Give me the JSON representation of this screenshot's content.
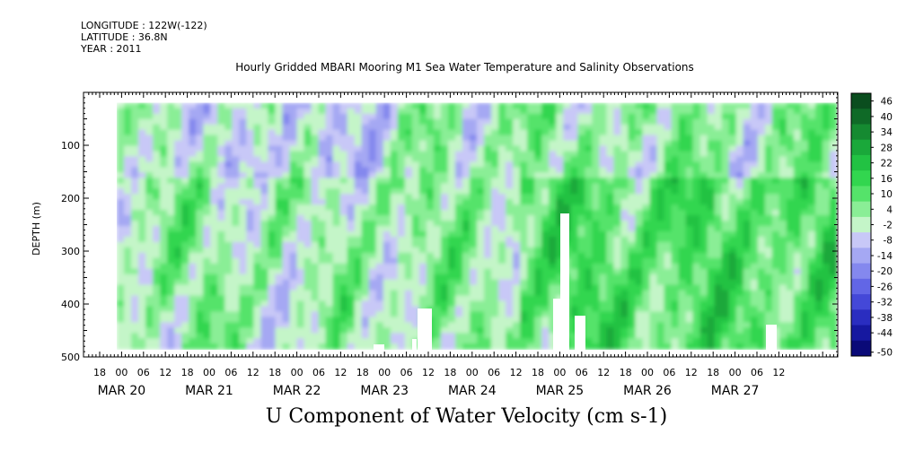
{
  "header": {
    "longitude": "LONGITUDE : 122W(-122)",
    "latitude": "LATITUDE : 36.8N",
    "year": "YEAR : 2011"
  },
  "chart_data": {
    "type": "heatmap",
    "title": "Hourly Gridded MBARI Mooring M1 Sea Water Temperature and Salinity Observations",
    "xlabel": "U Component of Water Velocity (cm s-1)",
    "ylabel": "DEPTH (m)",
    "ylim": [
      500,
      0
    ],
    "yticks": [
      100,
      200,
      300,
      400,
      500
    ],
    "data_depth_range": [
      20,
      485
    ],
    "x_hour_ticks": [
      "18",
      "00",
      "06",
      "12",
      "18",
      "00",
      "06",
      "12",
      "18",
      "00",
      "06",
      "12",
      "18",
      "00",
      "06",
      "12",
      "18",
      "00",
      "06",
      "12",
      "18",
      "00",
      "06",
      "12",
      "18",
      "00",
      "06",
      "12",
      "18",
      "00",
      "06",
      "12"
    ],
    "x_day_labels": [
      "MAR 20",
      "MAR 21",
      "MAR 22",
      "MAR 23",
      "MAR 24",
      "MAR 25",
      "MAR 26",
      "MAR 27"
    ],
    "colorbar": {
      "levels": [
        "46",
        "40",
        "34",
        "28",
        "22",
        "16",
        "10",
        "4",
        "-2",
        "-8",
        "-14",
        "-20",
        "-26",
        "-32",
        "-38",
        "-44",
        "-50"
      ],
      "colors": [
        "#0a4d1e",
        "#0f6a27",
        "#158a31",
        "#1aa83a",
        "#22c243",
        "#32d64f",
        "#55e36a",
        "#8aee96",
        "#c4f5c8",
        "#c8c8f7",
        "#a5a8f3",
        "#8488ee",
        "#6266e6",
        "#4448d8",
        "#2a2dc0",
        "#1618a0",
        "#0a0a78"
      ]
    },
    "pattern_summary": "Velocity field mostly between -14 and +22 cm/s; negative (blue) bands dominate Mar 20-23 near surface and mid-depth, positive (green) dominates below 200 m from Mar 23 onward with strongest green near 300 m on Mar 24-26."
  }
}
